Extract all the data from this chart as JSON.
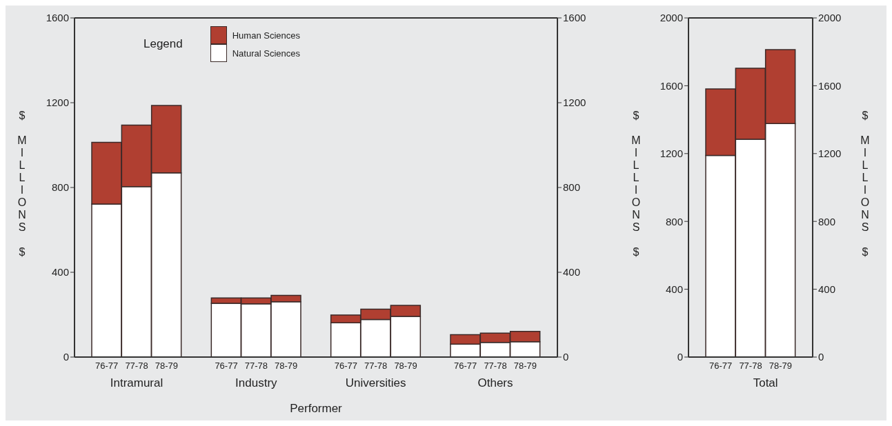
{
  "chart_data": [
    {
      "type": "bar",
      "stacked": true,
      "xlabel": "Performer",
      "ylabel": "$ MILLIONS $",
      "legend_title": "Legend",
      "legend": "top",
      "categories": [
        "76-77",
        "77-78",
        "78-79",
        null,
        "76-77",
        "77-78",
        "78-79",
        null,
        "76-77",
        "77-78",
        "78-79",
        null,
        "76-77",
        "77-78",
        "78-79"
      ],
      "series": [
        {
          "name": "Natural Sciences",
          "color": "#ffffff",
          "values": [
            722,
            804,
            869,
            null,
            254,
            251,
            261,
            null,
            162,
            177,
            192,
            null,
            61,
            69,
            72
          ]
        },
        {
          "name": "Human Sciences",
          "color": "#b03f31",
          "values": [
            291,
            290,
            318,
            null,
            25,
            28,
            30,
            null,
            36,
            49,
            52,
            null,
            45,
            44,
            49
          ]
        }
      ],
      "annotations": [
        "Intramural",
        "Industry",
        "Universities",
        "Others"
      ],
      "ylim": [
        0,
        1600
      ],
      "yticks": [
        0,
        400,
        800,
        1200,
        1600
      ],
      "y2lim": [
        0,
        1600
      ],
      "y2ticks": [
        0,
        400,
        800,
        1200,
        1600
      ],
      "grid": false
    },
    {
      "type": "bar",
      "stacked": true,
      "ylabel": "$ MILLIONS $",
      "y2label": "$ MILLIONS $",
      "categories": [
        "76-77",
        "77-78",
        "78-79"
      ],
      "series": [
        {
          "color": "#ffffff",
          "values": [
            1189,
            1285,
            1377
          ]
        },
        {
          "color": "#b03f31",
          "values": [
            392,
            418,
            436
          ]
        }
      ],
      "annotations": [
        "Total"
      ],
      "ylim": [
        0,
        2000
      ],
      "yticks": [
        0,
        400,
        800,
        1200,
        1600,
        2000
      ],
      "y2lim": [
        0,
        2000
      ],
      "y2ticks": [
        0,
        400,
        800,
        1200,
        1600,
        2000
      ],
      "grid": false
    }
  ]
}
